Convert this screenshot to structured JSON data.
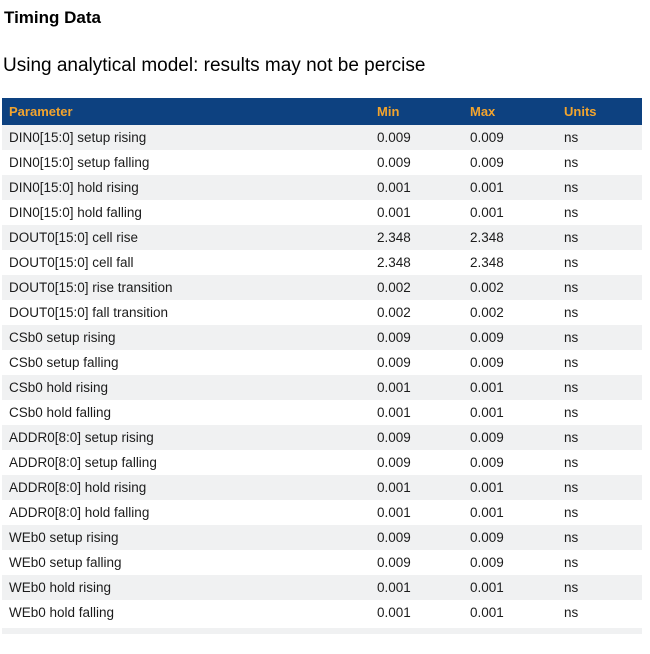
{
  "page": {
    "title": "Timing Data",
    "subtitle": "Using analytical model: results may not be percise"
  },
  "colors": {
    "header_bg": "#0d4180",
    "header_text": "#f2a42e",
    "row_stripe": "#f0f1f2",
    "row_text": "#1c1c1c",
    "page_bg": "#ffffff"
  },
  "table": {
    "headers": [
      "Parameter",
      "Min",
      "Max",
      "Units"
    ],
    "rows": [
      {
        "parameter": "DIN0[15:0] setup rising",
        "min": "0.009",
        "max": "0.009",
        "units": "ns"
      },
      {
        "parameter": "DIN0[15:0] setup falling",
        "min": "0.009",
        "max": "0.009",
        "units": "ns"
      },
      {
        "parameter": "DIN0[15:0] hold rising",
        "min": "0.001",
        "max": "0.001",
        "units": "ns"
      },
      {
        "parameter": "DIN0[15:0] hold falling",
        "min": "0.001",
        "max": "0.001",
        "units": "ns"
      },
      {
        "parameter": "DOUT0[15:0] cell rise",
        "min": "2.348",
        "max": "2.348",
        "units": "ns"
      },
      {
        "parameter": "DOUT0[15:0] cell fall",
        "min": "2.348",
        "max": "2.348",
        "units": "ns"
      },
      {
        "parameter": "DOUT0[15:0] rise transition",
        "min": "0.002",
        "max": "0.002",
        "units": "ns"
      },
      {
        "parameter": "DOUT0[15:0] fall transition",
        "min": "0.002",
        "max": "0.002",
        "units": "ns"
      },
      {
        "parameter": "CSb0 setup rising",
        "min": "0.009",
        "max": "0.009",
        "units": "ns"
      },
      {
        "parameter": "CSb0 setup falling",
        "min": "0.009",
        "max": "0.009",
        "units": "ns"
      },
      {
        "parameter": "CSb0 hold rising",
        "min": "0.001",
        "max": "0.001",
        "units": "ns"
      },
      {
        "parameter": "CSb0 hold falling",
        "min": "0.001",
        "max": "0.001",
        "units": "ns"
      },
      {
        "parameter": "ADDR0[8:0] setup rising",
        "min": "0.009",
        "max": "0.009",
        "units": "ns"
      },
      {
        "parameter": "ADDR0[8:0] setup falling",
        "min": "0.009",
        "max": "0.009",
        "units": "ns"
      },
      {
        "parameter": "ADDR0[8:0] hold rising",
        "min": "0.001",
        "max": "0.001",
        "units": "ns"
      },
      {
        "parameter": "ADDR0[8:0] hold falling",
        "min": "0.001",
        "max": "0.001",
        "units": "ns"
      },
      {
        "parameter": "WEb0 setup rising",
        "min": "0.009",
        "max": "0.009",
        "units": "ns"
      },
      {
        "parameter": "WEb0 setup falling",
        "min": "0.009",
        "max": "0.009",
        "units": "ns"
      },
      {
        "parameter": "WEb0 hold rising",
        "min": "0.001",
        "max": "0.001",
        "units": "ns"
      },
      {
        "parameter": "WEb0 hold falling",
        "min": "0.001",
        "max": "0.001",
        "units": "ns"
      }
    ]
  }
}
